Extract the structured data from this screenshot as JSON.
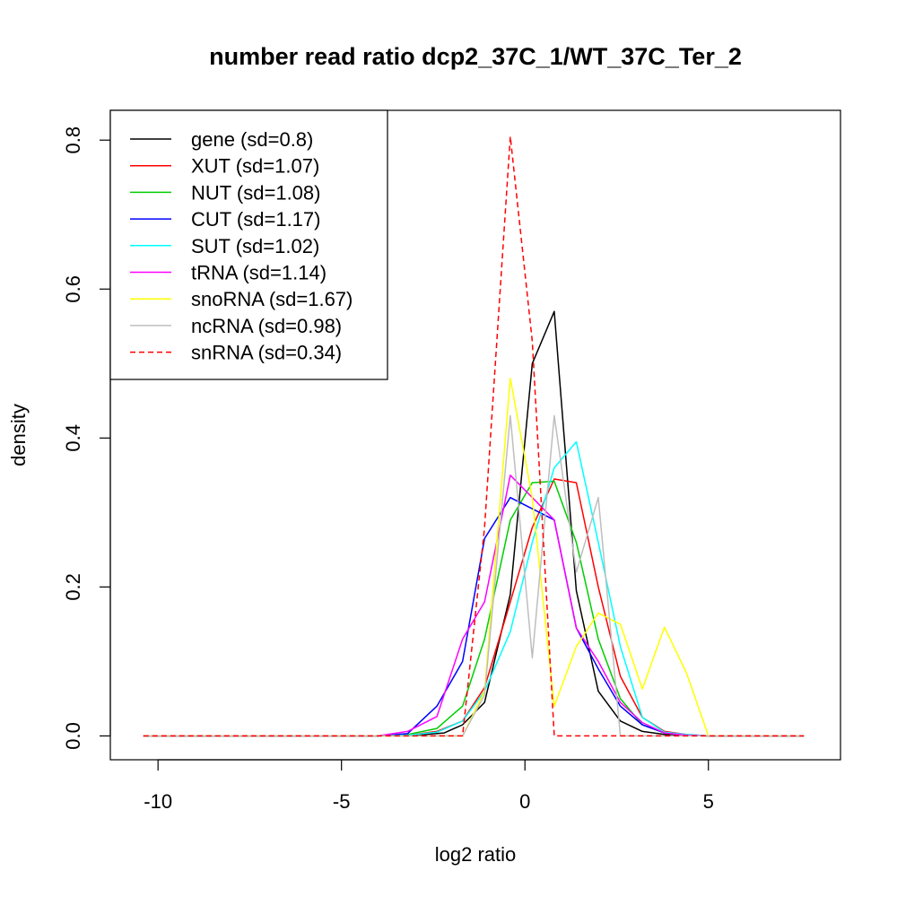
{
  "chart_data": {
    "type": "line",
    "title": "number read ratio dcp2_37C_1/WT_37C_Ter_2",
    "xlabel": "log2 ratio",
    "ylabel": "density",
    "xlim": [
      -11.3,
      8.6
    ],
    "ylim": [
      -0.032,
      0.84
    ],
    "xticks": [
      -10,
      -5,
      0,
      5
    ],
    "xtick_labels": [
      "-10",
      "-5",
      "0",
      "5"
    ],
    "yticks": [
      0.0,
      0.2,
      0.4,
      0.6,
      0.8
    ],
    "ytick_labels": [
      "0.0",
      "0.2",
      "0.4",
      "0.6",
      "0.8"
    ],
    "legend_position": "top-left",
    "series": [
      {
        "name": "gene (sd=0.8)",
        "color": "#000000",
        "dashed": false,
        "x": [
          -10.4,
          -4,
          -3,
          -2.2,
          -1.7,
          -1.1,
          -0.4,
          0.2,
          0.8,
          1.4,
          2.0,
          2.6,
          3.2,
          3.8,
          4.4,
          5.0,
          7.6
        ],
        "y": [
          0,
          0,
          0.001,
          0.004,
          0.015,
          0.045,
          0.19,
          0.5,
          0.57,
          0.195,
          0.06,
          0.02,
          0.006,
          0.002,
          0.001,
          0,
          0
        ]
      },
      {
        "name": "XUT (sd=1.07)",
        "color": "#ff0000",
        "dashed": false,
        "x": [
          -10.4,
          -4,
          -3.2,
          -2.4,
          -1.7,
          -1.1,
          -0.4,
          0.2,
          0.8,
          1.4,
          2.0,
          2.6,
          3.2,
          3.8,
          4.4,
          5.0,
          7.6
        ],
        "y": [
          0,
          0,
          0.001,
          0.006,
          0.02,
          0.065,
          0.18,
          0.28,
          0.345,
          0.34,
          0.2,
          0.08,
          0.025,
          0.006,
          0.002,
          0,
          0
        ]
      },
      {
        "name": "NUT (sd=1.08)",
        "color": "#00cd00",
        "dashed": false,
        "x": [
          -10.4,
          -4,
          -3.2,
          -2.4,
          -1.7,
          -1.1,
          -0.4,
          0.2,
          0.8,
          1.4,
          2.0,
          2.6,
          3.2,
          3.8,
          4.4,
          5.0,
          7.6
        ],
        "y": [
          0,
          0,
          0.002,
          0.01,
          0.04,
          0.13,
          0.29,
          0.34,
          0.342,
          0.26,
          0.13,
          0.05,
          0.015,
          0.004,
          0.001,
          0,
          0
        ]
      },
      {
        "name": "CUT (sd=1.17)",
        "color": "#0000ff",
        "dashed": false,
        "x": [
          -10.4,
          -4,
          -3.2,
          -2.4,
          -1.7,
          -1.1,
          -0.4,
          0.2,
          0.8,
          1.4,
          2.0,
          2.6,
          3.2,
          3.8,
          4.4,
          5.0,
          7.6
        ],
        "y": [
          0,
          0,
          0.003,
          0.04,
          0.1,
          0.265,
          0.32,
          0.305,
          0.29,
          0.145,
          0.09,
          0.04,
          0.015,
          0.004,
          0.001,
          0,
          0
        ]
      },
      {
        "name": "SUT (sd=1.02)",
        "color": "#00ffff",
        "dashed": false,
        "x": [
          -10.4,
          -4,
          -3.2,
          -2.4,
          -1.7,
          -1.1,
          -0.4,
          0.2,
          0.8,
          1.4,
          2.0,
          2.6,
          3.2,
          3.8,
          4.4,
          5.0,
          7.6
        ],
        "y": [
          0,
          0,
          0.001,
          0.005,
          0.02,
          0.06,
          0.14,
          0.26,
          0.36,
          0.395,
          0.26,
          0.12,
          0.025,
          0.005,
          0.002,
          0,
          0
        ]
      },
      {
        "name": "tRNA (sd=1.14)",
        "color": "#ff00ff",
        "dashed": false,
        "x": [
          -10.4,
          -4,
          -3.2,
          -2.4,
          -1.7,
          -1.1,
          -0.4,
          0.2,
          0.8,
          1.4,
          2.0,
          2.6,
          3.2,
          3.8,
          4.4,
          5.0,
          7.6
        ],
        "y": [
          0,
          0,
          0.006,
          0.026,
          0.13,
          0.18,
          0.35,
          0.32,
          0.29,
          0.145,
          0.1,
          0.045,
          0.018,
          0.004,
          0.001,
          0,
          0
        ]
      },
      {
        "name": "snoRNA (sd=1.67)",
        "color": "#ffff00",
        "dashed": false,
        "x": [
          -10.4,
          -4,
          -2,
          -1.7,
          -1.1,
          -0.4,
          0.2,
          0.8,
          1.4,
          2.0,
          2.6,
          3.2,
          3.8,
          4.4,
          5.0,
          7.6
        ],
        "y": [
          0,
          0,
          0,
          0,
          0.06,
          0.48,
          0.32,
          0.04,
          0.12,
          0.165,
          0.15,
          0.063,
          0.146,
          0.085,
          0,
          0
        ]
      },
      {
        "name": "ncRNA (sd=0.98)",
        "color": "#bebebe",
        "dashed": false,
        "x": [
          -10.4,
          -4,
          -2.5,
          -1.7,
          -1.1,
          -0.4,
          0.2,
          0.8,
          1.4,
          2.0,
          2.6,
          3.2,
          7.6
        ],
        "y": [
          0,
          0,
          0,
          0,
          0.055,
          0.43,
          0.105,
          0.43,
          0.22,
          0.32,
          0,
          0,
          0
        ]
      },
      {
        "name": "snRNA (sd=0.34)",
        "color": "#ff0000",
        "dashed": true,
        "x": [
          -10.4,
          -4,
          -1.7,
          -1.1,
          -0.4,
          0.2,
          0.8,
          1.4,
          7.6
        ],
        "y": [
          0,
          0,
          0,
          0.28,
          0.805,
          0.53,
          0,
          0,
          0
        ]
      }
    ]
  }
}
